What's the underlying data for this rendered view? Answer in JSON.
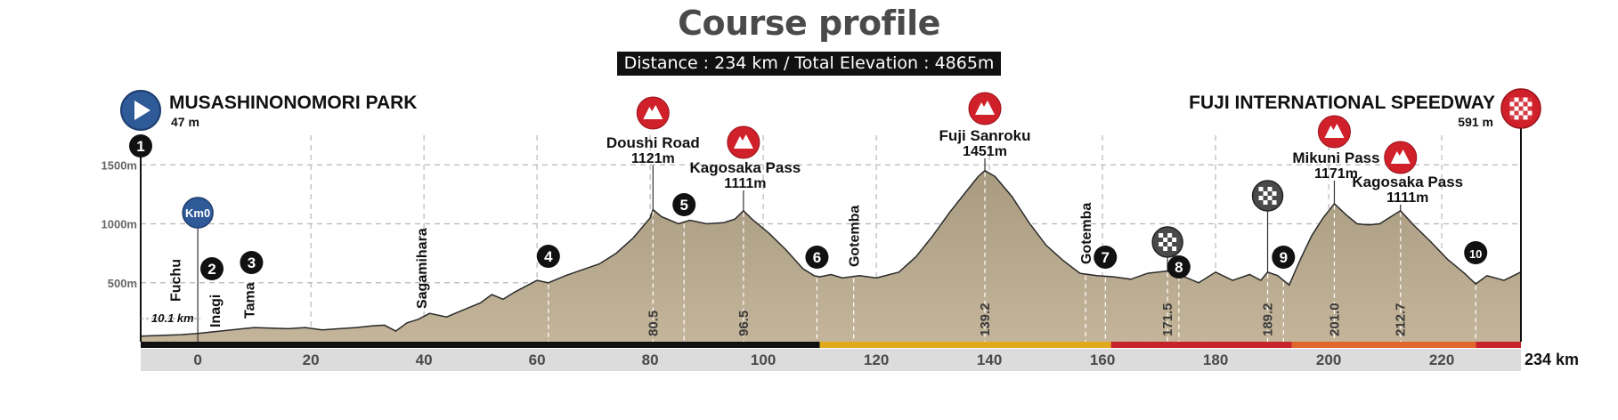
{
  "page": {
    "title": "Course profile",
    "subtitle": "Distance : 234 km / Total Elevation : 4865m"
  },
  "colors": {
    "terrain": "#c4b59a",
    "terrain_top": "#a89b80",
    "grid": "#b8b8b8",
    "axis_band": "#dcdcdc",
    "marker_red": "#d0202a",
    "start_blue": "#2e5a98",
    "stage_black": "#111111",
    "stage_yellow": "#e1a91c",
    "stage_red": "#c8222a",
    "stage_orange": "#e0662b",
    "text": "#222222",
    "axis_text": "#4a4a4a"
  },
  "chart_data": {
    "type": "area",
    "title": "Course profile",
    "xlabel": "",
    "ylabel": "",
    "xlim": [
      -10.1,
      234
    ],
    "ylim": [
      0,
      1550
    ],
    "x_ticks": [
      0,
      20,
      40,
      60,
      80,
      100,
      120,
      140,
      160,
      180,
      200,
      220
    ],
    "x_end_label": "234 km",
    "y_ticks": [
      {
        "value": 500,
        "label": "500m"
      },
      {
        "value": 1000,
        "label": "1000m"
      },
      {
        "value": 1500,
        "label": "1500m"
      }
    ],
    "grid": true,
    "profile": [
      [
        -10.1,
        47
      ],
      [
        -3,
        60
      ],
      [
        0,
        70
      ],
      [
        2,
        80
      ],
      [
        5,
        95
      ],
      [
        8,
        110
      ],
      [
        10,
        120
      ],
      [
        13,
        115
      ],
      [
        16,
        110
      ],
      [
        19,
        120
      ],
      [
        22,
        100
      ],
      [
        25,
        110
      ],
      [
        28,
        120
      ],
      [
        31,
        135
      ],
      [
        33,
        140
      ],
      [
        35,
        90
      ],
      [
        37,
        160
      ],
      [
        39,
        190
      ],
      [
        41,
        240
      ],
      [
        44,
        210
      ],
      [
        47,
        270
      ],
      [
        50,
        330
      ],
      [
        52,
        400
      ],
      [
        54,
        360
      ],
      [
        56,
        420
      ],
      [
        58,
        470
      ],
      [
        60,
        520
      ],
      [
        62,
        500
      ],
      [
        65,
        560
      ],
      [
        68,
        610
      ],
      [
        71,
        660
      ],
      [
        74,
        750
      ],
      [
        77,
        880
      ],
      [
        80,
        1050
      ],
      [
        80.5,
        1121
      ],
      [
        82,
        1060
      ],
      [
        85,
        1000
      ],
      [
        87,
        1030
      ],
      [
        90,
        1000
      ],
      [
        93,
        1010
      ],
      [
        95,
        1040
      ],
      [
        96.5,
        1111
      ],
      [
        98,
        1040
      ],
      [
        101,
        920
      ],
      [
        104,
        780
      ],
      [
        107,
        620
      ],
      [
        109,
        560
      ],
      [
        110,
        550
      ],
      [
        112,
        570
      ],
      [
        114,
        540
      ],
      [
        117,
        560
      ],
      [
        120,
        540
      ],
      [
        124,
        590
      ],
      [
        127,
        720
      ],
      [
        130,
        900
      ],
      [
        133,
        1100
      ],
      [
        136,
        1280
      ],
      [
        138,
        1400
      ],
      [
        139.2,
        1451
      ],
      [
        141,
        1400
      ],
      [
        144,
        1230
      ],
      [
        147,
        1010
      ],
      [
        150,
        820
      ],
      [
        153,
        690
      ],
      [
        156,
        580
      ],
      [
        159,
        560
      ],
      [
        162,
        550
      ],
      [
        165,
        530
      ],
      [
        168,
        580
      ],
      [
        171.5,
        600
      ],
      [
        174,
        560
      ],
      [
        177,
        500
      ],
      [
        180,
        590
      ],
      [
        183,
        520
      ],
      [
        186,
        570
      ],
      [
        188,
        520
      ],
      [
        189.2,
        590
      ],
      [
        191,
        560
      ],
      [
        193,
        480
      ],
      [
        195,
        700
      ],
      [
        197,
        900
      ],
      [
        199,
        1050
      ],
      [
        201,
        1171
      ],
      [
        203,
        1080
      ],
      [
        205,
        1000
      ],
      [
        207,
        990
      ],
      [
        209,
        1000
      ],
      [
        211,
        1060
      ],
      [
        212.7,
        1111
      ],
      [
        215,
        990
      ],
      [
        218,
        850
      ],
      [
        221,
        700
      ],
      [
        224,
        580
      ],
      [
        226,
        490
      ],
      [
        228,
        560
      ],
      [
        231,
        520
      ],
      [
        234,
        591
      ]
    ],
    "route_start": {
      "name": "MUSASHINONOMORI PARK",
      "elevation_label": "47 m",
      "km": -10.1
    },
    "route_finish": {
      "name": "FUJI INTERNATIONAL SPEEDWAY",
      "elevation_label": "591 m",
      "km": 234
    },
    "distance_label": "10.1 km",
    "km0": {
      "label": "Km0",
      "km": 0
    },
    "climbs": [
      {
        "name": "Doushi Road",
        "elevation": "1121m",
        "km": 80.5
      },
      {
        "name": "Kagosaka Pass",
        "elevation": "1111m",
        "km": 96.5
      },
      {
        "name": "Fuji Sanroku",
        "elevation": "1451m",
        "km": 139.2
      },
      {
        "name": "Mikuni Pass",
        "elevation": "1171m",
        "km": 201
      },
      {
        "name": "Kagosaka Pass",
        "elevation": "1111m",
        "km": 212.7
      }
    ],
    "km_markers": [
      "80.5",
      "96.5",
      "139.2",
      "171.5",
      "189.2",
      "201.0",
      "212.7"
    ],
    "sprints": [
      {
        "km": 171.5
      },
      {
        "km": 189.2
      }
    ],
    "places": [
      {
        "name": "Fuchu",
        "km": -4
      },
      {
        "name": "Inagi",
        "km": 3
      },
      {
        "name": "Tama",
        "km": 9
      },
      {
        "name": "Sagamihara",
        "km": 39.5
      },
      {
        "name": "Gotemba",
        "km": 116
      },
      {
        "name": "Gotemba",
        "km": 157
      }
    ],
    "waypoints": [
      {
        "label": "1",
        "km": -10.1
      },
      {
        "label": "2",
        "km": 2.5
      },
      {
        "label": "3",
        "km": 9.5
      },
      {
        "label": "4",
        "km": 62
      },
      {
        "label": "5",
        "km": 86
      },
      {
        "label": "6",
        "km": 109.5
      },
      {
        "label": "7",
        "km": 160.5
      },
      {
        "label": "8",
        "km": 173.5
      },
      {
        "label": "9",
        "km": 192
      },
      {
        "label": "10",
        "km": 226
      }
    ],
    "sectors": [
      {
        "from": -10.1,
        "to": 110,
        "color": "#111111"
      },
      {
        "from": 110,
        "to": 161.5,
        "color": "#e1a91c"
      },
      {
        "from": 161.5,
        "to": 193.5,
        "color": "#c8222a"
      },
      {
        "from": 193.5,
        "to": 226,
        "color": "#e0662b"
      },
      {
        "from": 226,
        "to": 234,
        "color": "#c8222a"
      }
    ]
  }
}
